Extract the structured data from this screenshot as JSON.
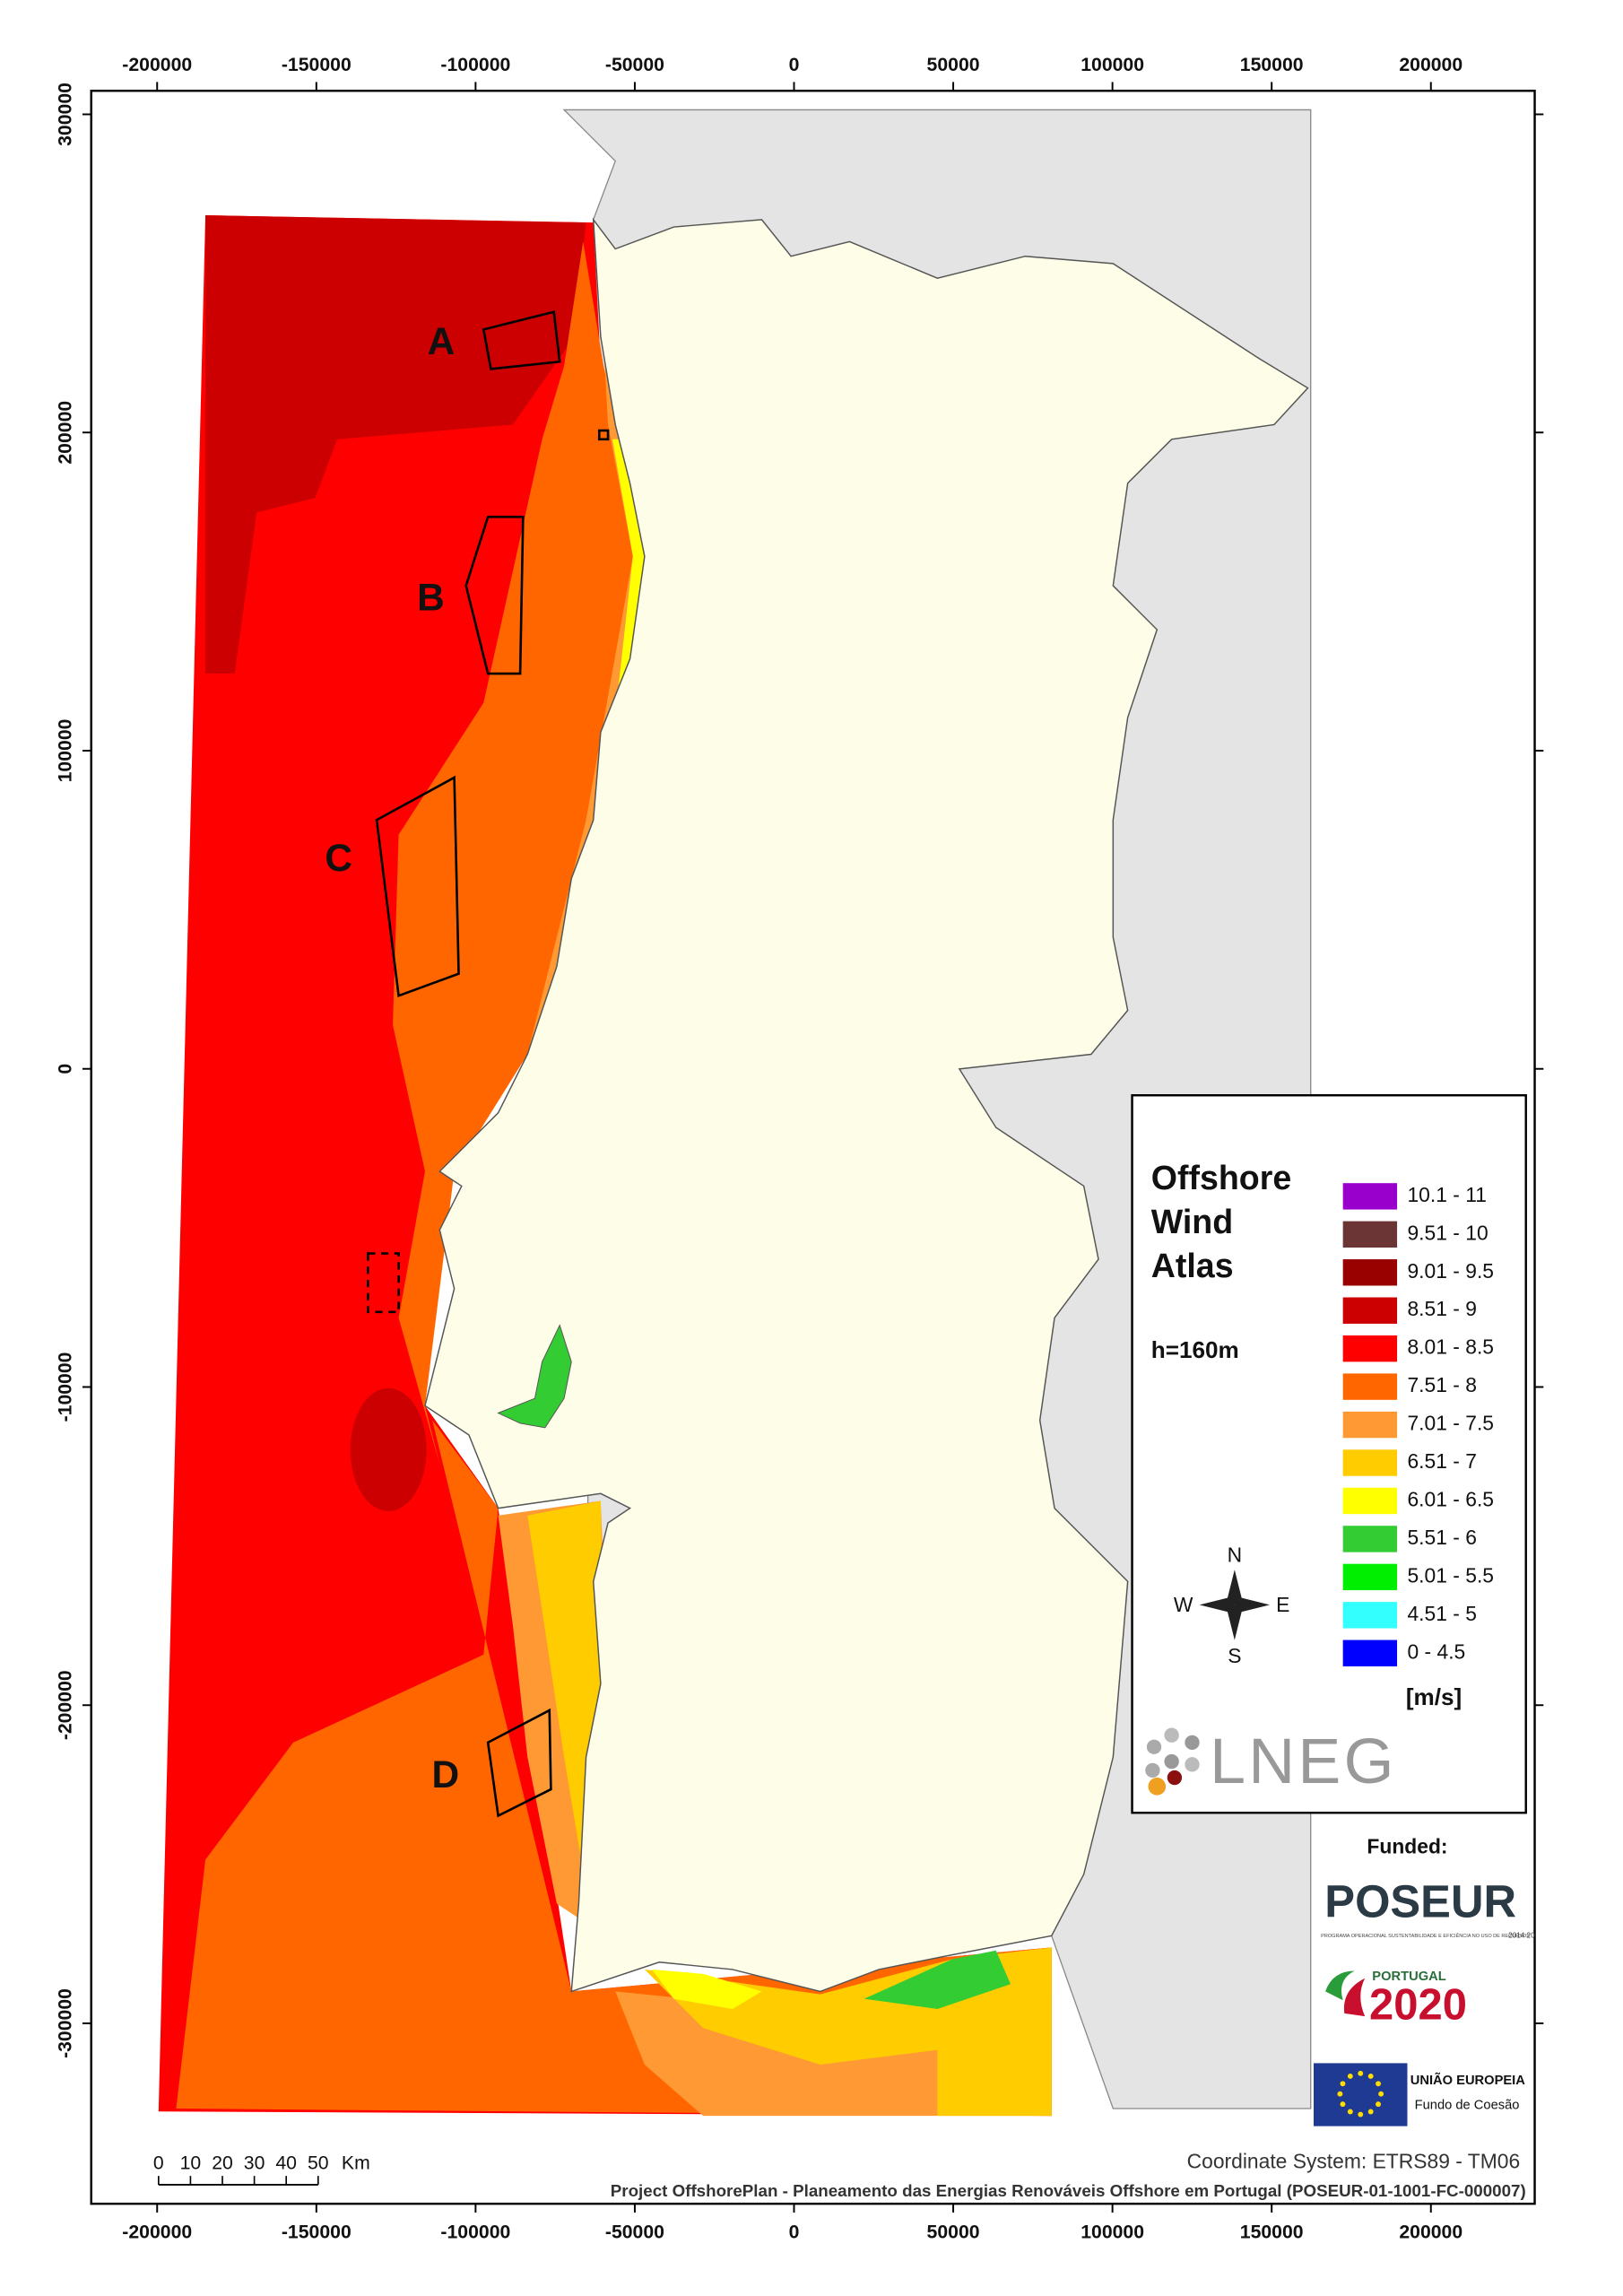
{
  "map_frame": {
    "xlim": [
      -220700,
      232600
    ],
    "ylim": [
      -356700,
      307400
    ],
    "xticks": [
      -200000,
      -150000,
      -100000,
      -50000,
      0,
      50000,
      100000,
      150000,
      200000
    ],
    "yticks": [
      300000,
      200000,
      100000,
      0,
      -100000,
      -200000,
      -300000
    ]
  },
  "zone_labels": [
    "A",
    "B",
    "C",
    "D"
  ],
  "legend": {
    "title_lines": [
      "Offshore",
      "Wind",
      "Atlas"
    ],
    "height": "h=160m",
    "items": [
      {
        "label": "10.1 - 11",
        "color": "#9900cc"
      },
      {
        "label": "9.51 - 10",
        "color": "#6b3535"
      },
      {
        "label": "9.01 - 9.5",
        "color": "#990000"
      },
      {
        "label": "8.51 - 9",
        "color": "#cc0000"
      },
      {
        "label": "8.01 - 8.5",
        "color": "#ff0000"
      },
      {
        "label": "7.51 - 8",
        "color": "#ff6600"
      },
      {
        "label": "7.01 - 7.5",
        "color": "#ff9933"
      },
      {
        "label": "6.51 - 7",
        "color": "#ffcc00"
      },
      {
        "label": "6.01 - 6.5",
        "color": "#ffff00"
      },
      {
        "label": "5.51 - 6",
        "color": "#33cc33"
      },
      {
        "label": "5.01 - 5.5",
        "color": "#00ee00"
      },
      {
        "label": "4.51 - 5",
        "color": "#33ffff"
      },
      {
        "label": "0 - 4.5",
        "color": "#0000ff"
      }
    ],
    "unit": "[m/s]"
  },
  "compass": {
    "n": "N",
    "e": "E",
    "s": "S",
    "w": "W"
  },
  "logos": {
    "lneg": "LNEG",
    "funded": "Funded:",
    "poseur": "POSEUR",
    "poseur_sub": "PROGRAMA OPERACIONAL SUSTENTABILIDADE E EFICIÊNCIA NO USO DE RECURSOS",
    "poseur_years": "2014 20",
    "portugal": "PORTUGAL",
    "p2020": "2020",
    "eu": "UNIÃO EUROPEIA",
    "eu_fund": "Fundo de Coesão"
  },
  "scale_bar": {
    "labels": [
      "0",
      "10",
      "20",
      "30",
      "40",
      "50"
    ],
    "unit": "Km"
  },
  "footer": {
    "coordinate_system": "Coordinate System: ETRS89 - TM06",
    "project": "Project OffshorePlan - Planeamento das Energias Renováveis Offshore em Portugal (POSEUR-01-1001-FC-000007)"
  }
}
